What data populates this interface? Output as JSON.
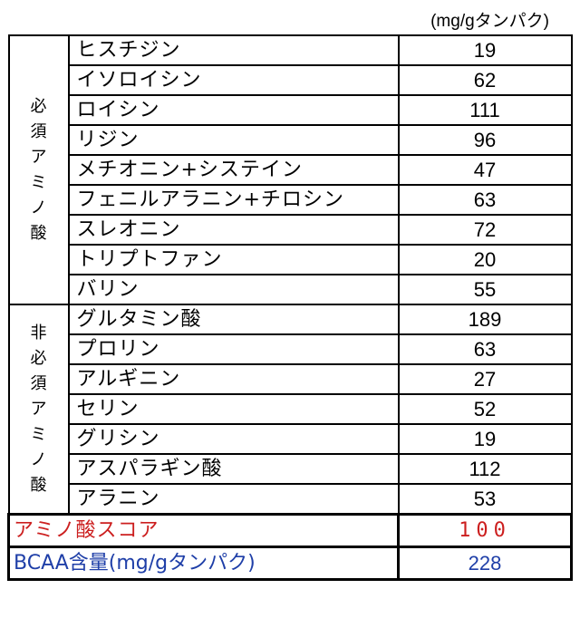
{
  "unit_label": "(mg/gタンパク)",
  "groups": [
    {
      "label": "必須アミノ酸",
      "rows": [
        {
          "name": "ヒスチジン",
          "value": "19"
        },
        {
          "name": "イソロイシン",
          "value": "62"
        },
        {
          "name": "ロイシン",
          "value": "111"
        },
        {
          "name": "リジン",
          "value": "96"
        },
        {
          "name": "メチオニン+システイン",
          "value": "47"
        },
        {
          "name": "フェニルアラニン+チロシン",
          "value": "63"
        },
        {
          "name": "スレオニン",
          "value": "72"
        },
        {
          "name": "トリプトファン",
          "value": "20"
        },
        {
          "name": "バリン",
          "value": "55"
        }
      ]
    },
    {
      "label": "非必須アミノ酸",
      "rows": [
        {
          "name": "グルタミン酸",
          "value": "189"
        },
        {
          "name": "プロリン",
          "value": "63"
        },
        {
          "name": "アルギニン",
          "value": "27"
        },
        {
          "name": "セリン",
          "value": "52"
        },
        {
          "name": "グリシン",
          "value": "19"
        },
        {
          "name": "アスパラギン酸",
          "value": "112"
        },
        {
          "name": "アラニン",
          "value": "53"
        }
      ]
    }
  ],
  "amino_score": {
    "label": "アミノ酸スコア",
    "value": "100"
  },
  "bcaa": {
    "label": "BCAA含量(mg/gタンパク)",
    "value": "228"
  },
  "colors": {
    "score": "#cc1f1f",
    "bcaa": "#1f3fa8",
    "border": "#000000"
  }
}
